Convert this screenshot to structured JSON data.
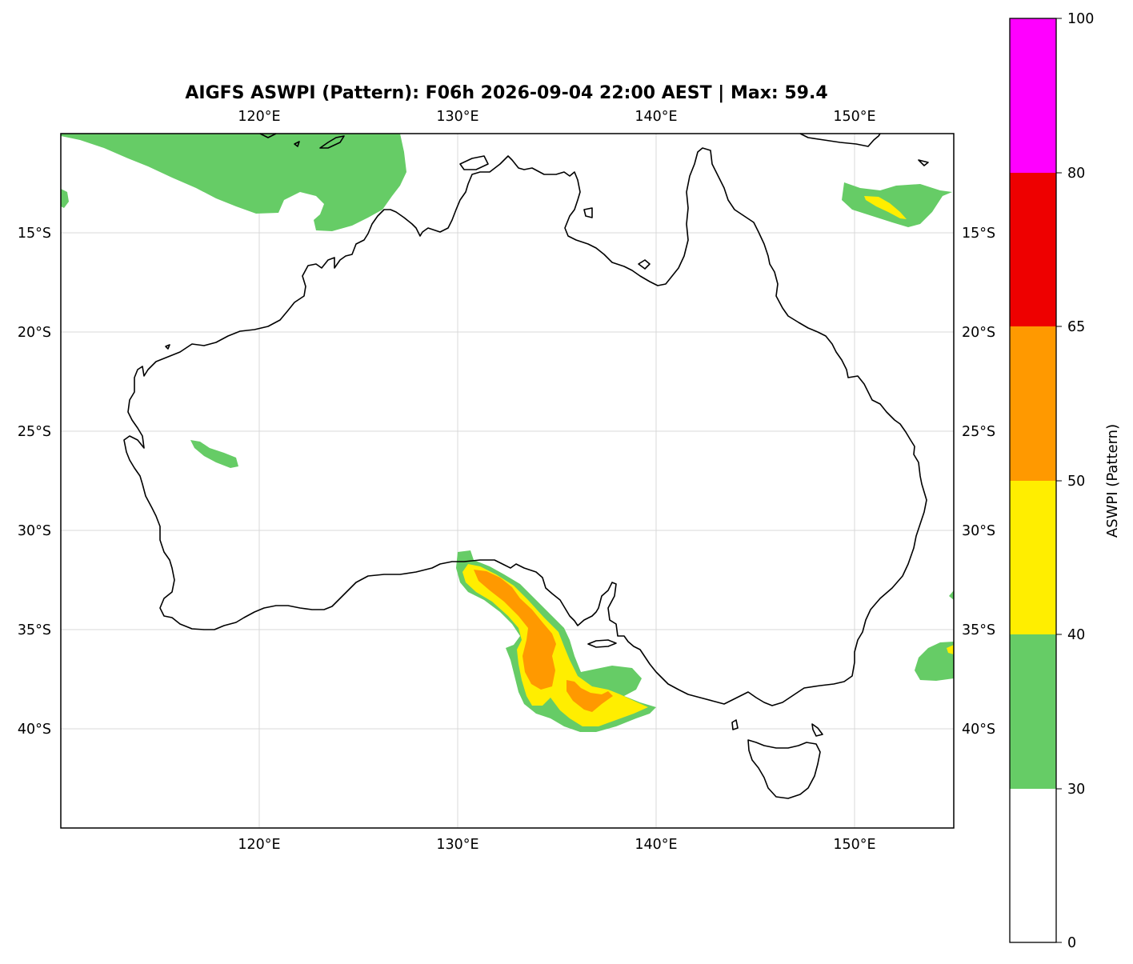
{
  "title": "AIGFS ASWPI (Pattern): F06h 2026-09-04 22:00 AEST | Max: 59.4",
  "map": {
    "region": "Australia",
    "projection": "PlateCarree",
    "lon_range": [
      110,
      155
    ],
    "lat_range": [
      -45,
      -10
    ],
    "lon_ticks": [
      {
        "value": 120,
        "label": "120°E"
      },
      {
        "value": 130,
        "label": "130°E"
      },
      {
        "value": 140,
        "label": "140°E"
      },
      {
        "value": 150,
        "label": "150°E"
      }
    ],
    "lat_ticks": [
      {
        "value": -15,
        "label": "15°S"
      },
      {
        "value": -20,
        "label": "20°S"
      },
      {
        "value": -25,
        "label": "25°S"
      },
      {
        "value": -30,
        "label": "30°S"
      },
      {
        "value": -35,
        "label": "35°S"
      },
      {
        "value": -40,
        "label": "40°S"
      }
    ],
    "grid": true,
    "max_value": 59.4
  },
  "colorbar": {
    "label": "ASWPI (Pattern)",
    "levels": [
      0,
      30,
      40,
      50,
      65,
      80,
      100
    ],
    "tick_labels": [
      "0",
      "30",
      "40",
      "50",
      "65",
      "80",
      "100"
    ],
    "colors": [
      "#ffffff",
      "#66cc66",
      "#ffee00",
      "#ff9900",
      "#ee0000",
      "#ff00ff"
    ],
    "orientation": "vertical",
    "position": "right"
  },
  "legend_colors": {
    "c30_40": "#66cc66",
    "c40_50": "#ffee00",
    "c50_65": "#ff9900"
  }
}
